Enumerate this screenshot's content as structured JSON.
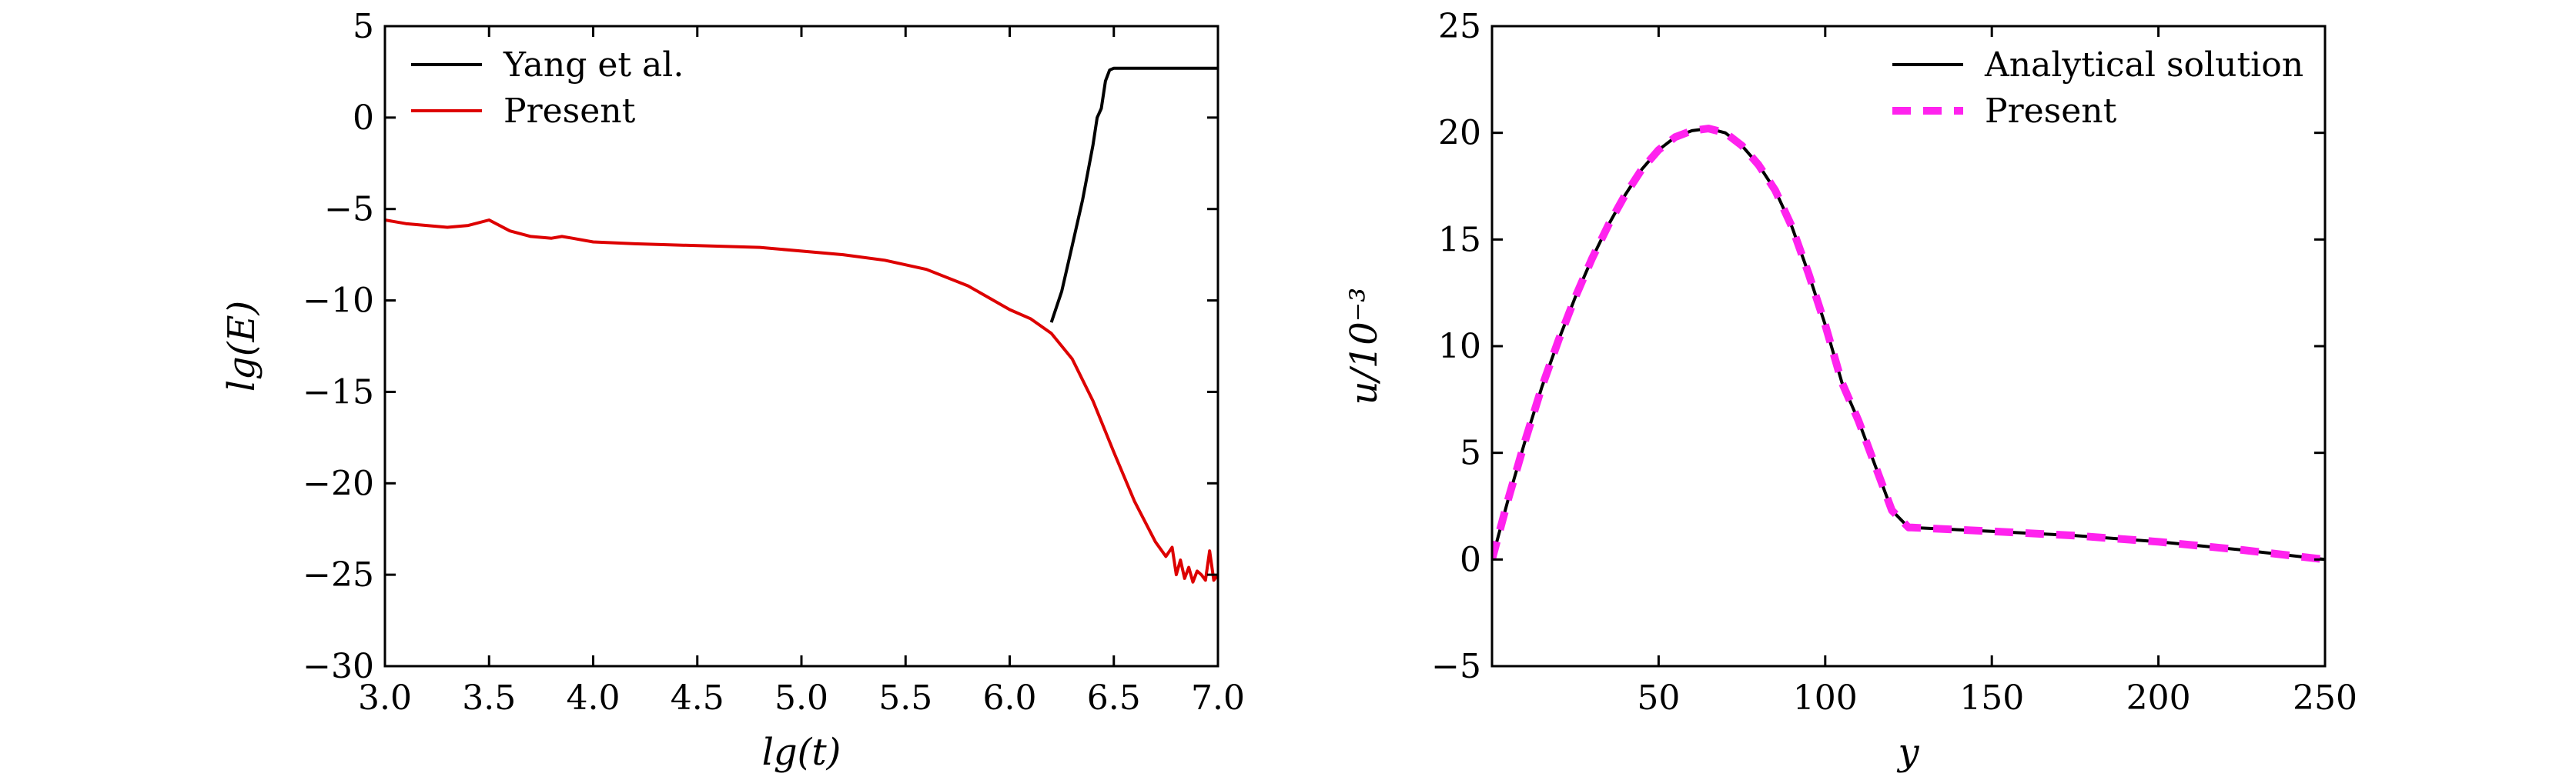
{
  "chart_data": [
    {
      "type": "line",
      "xlabel": "lg(t)",
      "ylabel": "lg(E)",
      "xlim": [
        3.0,
        7.0
      ],
      "ylim": [
        -30,
        5
      ],
      "xticks": [
        3.0,
        3.5,
        4.0,
        4.5,
        5.0,
        5.5,
        6.0,
        6.5,
        7.0
      ],
      "xtick_labels": [
        "3.0",
        "3.5",
        "4.0",
        "4.5",
        "5.0",
        "5.5",
        "6.0",
        "6.5",
        "7.0"
      ],
      "yticks": [
        5,
        0,
        -5,
        -10,
        -15,
        -20,
        -25,
        -30
      ],
      "ytick_labels": [
        "5",
        "0",
        "−5",
        "−10",
        "−15",
        "−20",
        "−25",
        "−30"
      ],
      "grid": false,
      "legend": "top-left",
      "series": [
        {
          "name": "Yang et al.",
          "color": "#000000",
          "style": "solid",
          "x": [
            6.2,
            6.25,
            6.3,
            6.35,
            6.4,
            6.42,
            6.44,
            6.46,
            6.48,
            6.5,
            6.6,
            6.8,
            7.0
          ],
          "y": [
            -11.2,
            -9.5,
            -7.0,
            -4.5,
            -1.5,
            0.0,
            0.5,
            2.0,
            2.6,
            2.7,
            2.7,
            2.7,
            2.7
          ]
        },
        {
          "name": "Present",
          "color": "#dd0000",
          "style": "solid",
          "x": [
            3.0,
            3.1,
            3.2,
            3.3,
            3.4,
            3.5,
            3.6,
            3.7,
            3.8,
            3.85,
            3.9,
            4.0,
            4.2,
            4.5,
            4.8,
            5.0,
            5.2,
            5.4,
            5.6,
            5.8,
            6.0,
            6.1,
            6.2,
            6.3,
            6.4,
            6.5,
            6.6,
            6.7,
            6.75,
            6.78,
            6.8,
            6.82,
            6.84,
            6.86,
            6.88,
            6.9,
            6.92,
            6.94,
            6.96,
            6.98,
            7.0
          ],
          "y": [
            -5.6,
            -5.8,
            -5.9,
            -6.0,
            -5.9,
            -5.6,
            -6.2,
            -6.5,
            -6.6,
            -6.5,
            -6.6,
            -6.8,
            -6.9,
            -7.0,
            -7.1,
            -7.3,
            -7.5,
            -7.8,
            -8.3,
            -9.2,
            -10.5,
            -11.0,
            -11.8,
            -13.2,
            -15.5,
            -18.3,
            -21.0,
            -23.2,
            -24.0,
            -23.5,
            -25.0,
            -24.2,
            -25.2,
            -24.6,
            -25.4,
            -24.8,
            -25.0,
            -25.3,
            -23.7,
            -25.3,
            -25.0
          ]
        }
      ]
    },
    {
      "type": "line",
      "xlabel": "y",
      "ylabel": "u/10⁻³",
      "xlim": [
        0,
        250
      ],
      "ylim": [
        -5,
        25
      ],
      "xticks": [
        50,
        100,
        150,
        200,
        250
      ],
      "xtick_labels": [
        "50",
        "100",
        "150",
        "200",
        "250"
      ],
      "yticks": [
        25,
        20,
        15,
        10,
        5,
        0,
        -5
      ],
      "ytick_labels": [
        "25",
        "20",
        "15",
        "10",
        "5",
        "0",
        "−5"
      ],
      "grid": false,
      "legend": "top-right",
      "series": [
        {
          "name": "Analytical solution",
          "color": "#000000",
          "style": "solid",
          "x": [
            0,
            5,
            10,
            15,
            20,
            25,
            30,
            35,
            40,
            45,
            50,
            55,
            60,
            65,
            70,
            75,
            80,
            85,
            90,
            95,
            100,
            105,
            110,
            115,
            120,
            125,
            126,
            130,
            150,
            175,
            200,
            225,
            250
          ],
          "y": [
            0.0,
            2.9,
            5.6,
            8.1,
            10.3,
            12.3,
            14.1,
            15.7,
            17.1,
            18.3,
            19.2,
            19.8,
            20.1,
            20.2,
            20.0,
            19.4,
            18.5,
            17.3,
            15.6,
            13.4,
            11.0,
            8.3,
            6.5,
            4.4,
            2.3,
            1.5,
            1.5,
            1.47,
            1.32,
            1.12,
            0.83,
            0.45,
            0.0
          ]
        },
        {
          "name": "Present",
          "color": "#ff22ee",
          "style": "dashed",
          "x": [
            0,
            5,
            10,
            15,
            20,
            25,
            30,
            35,
            40,
            45,
            50,
            55,
            60,
            65,
            70,
            75,
            80,
            85,
            90,
            95,
            100,
            105,
            110,
            115,
            120,
            125,
            126,
            130,
            150,
            175,
            200,
            225,
            250
          ],
          "y": [
            0.0,
            2.9,
            5.6,
            8.1,
            10.3,
            12.3,
            14.1,
            15.7,
            17.1,
            18.3,
            19.2,
            19.8,
            20.1,
            20.2,
            20.0,
            19.4,
            18.5,
            17.3,
            15.6,
            13.4,
            11.0,
            8.3,
            6.5,
            4.4,
            2.3,
            1.5,
            1.5,
            1.47,
            1.32,
            1.12,
            0.83,
            0.45,
            0.0
          ]
        }
      ]
    }
  ]
}
